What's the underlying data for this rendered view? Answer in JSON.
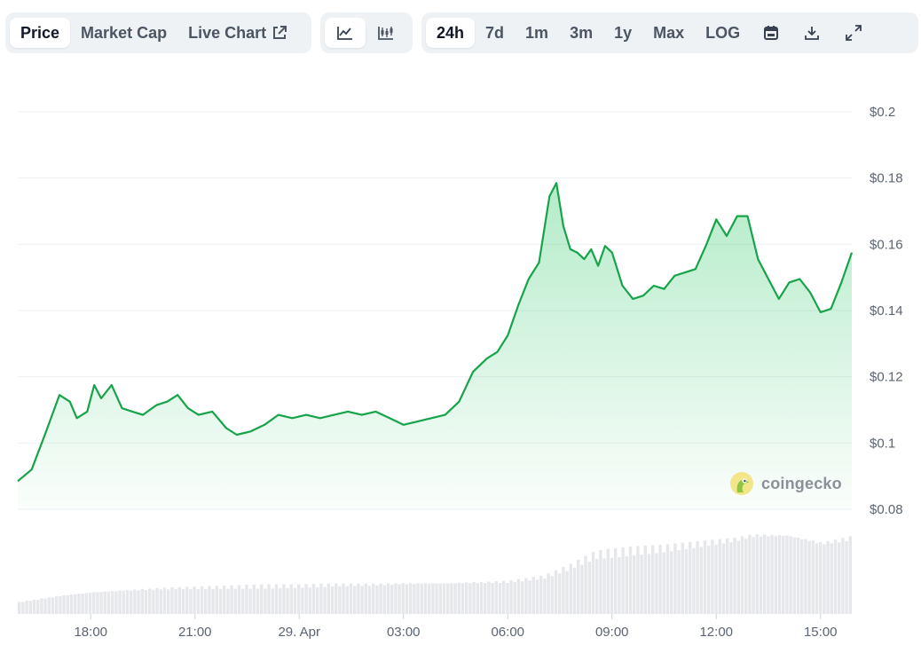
{
  "toolbar": {
    "type_tabs": [
      {
        "label": "Price",
        "active": true
      },
      {
        "label": "Market Cap",
        "active": false
      },
      {
        "label": "Live Chart",
        "active": false
      }
    ],
    "style_icons": [
      "line-chart-icon",
      "candlestick-chart-icon"
    ],
    "ranges": [
      {
        "label": "24h",
        "active": true
      },
      {
        "label": "7d",
        "active": false
      },
      {
        "label": "1m",
        "active": false
      },
      {
        "label": "3m",
        "active": false
      },
      {
        "label": "1y",
        "active": false
      },
      {
        "label": "Max",
        "active": false
      },
      {
        "label": "LOG",
        "active": false
      }
    ],
    "action_icons": [
      "calendar-icon",
      "download-icon",
      "fullscreen-icon"
    ]
  },
  "watermark": {
    "text": "coingecko"
  },
  "colors": {
    "line": "#16a34a",
    "area": "#22c55e",
    "volume": "#e5e7eb",
    "grid": "#edf0f3"
  },
  "chart_data": {
    "type": "line",
    "x_tick_labels": [
      "18:00",
      "21:00",
      "29. Apr",
      "03:00",
      "06:00",
      "09:00",
      "12:00",
      "15:00"
    ],
    "y_tick_labels": [
      "$0.2",
      "$0.18",
      "$0.16",
      "$0.14",
      "$0.12",
      "$0.1",
      "$0.08"
    ],
    "ylim": [
      0.08,
      0.2
    ],
    "x_range_hours": [
      15.9,
      39.9
    ],
    "grid": true,
    "series": [
      {
        "x": [
          15.9,
          16.3,
          16.7,
          17.1,
          17.4,
          17.6,
          17.9,
          18.1,
          18.3,
          18.6,
          18.9,
          19.2,
          19.5,
          19.9,
          20.2,
          20.5,
          20.8,
          21.1,
          21.5,
          21.9,
          22.2,
          22.6,
          23.0,
          23.4,
          23.8,
          24.2,
          24.6,
          25.0,
          25.4,
          25.8,
          26.2,
          26.6,
          27.0,
          27.4,
          27.8,
          28.2,
          28.6,
          29.0,
          29.4,
          29.7,
          30.0,
          30.3,
          30.6,
          30.9,
          31.2,
          31.4,
          31.6,
          31.8,
          32.0,
          32.2,
          32.4,
          32.6,
          32.8,
          33.0,
          33.3,
          33.6,
          33.9,
          34.2,
          34.5,
          34.8,
          35.1,
          35.4,
          35.7,
          36.0,
          36.3,
          36.6,
          36.9,
          37.2,
          37.5,
          37.8,
          38.1,
          38.4,
          38.7,
          39.0,
          39.3,
          39.6,
          39.9
        ],
        "values": [
          0.0885,
          0.092,
          0.103,
          0.1145,
          0.1125,
          0.1075,
          0.1095,
          0.1175,
          0.1135,
          0.1175,
          0.1105,
          0.1095,
          0.1085,
          0.1115,
          0.1125,
          0.1145,
          0.1105,
          0.1085,
          0.1095,
          0.1045,
          0.1025,
          0.1035,
          0.1055,
          0.1085,
          0.1075,
          0.1085,
          0.1075,
          0.1085,
          0.1095,
          0.1085,
          0.1095,
          0.1075,
          0.1055,
          0.1065,
          0.1075,
          0.1085,
          0.1125,
          0.1215,
          0.1255,
          0.1275,
          0.1325,
          0.1415,
          0.1495,
          0.1545,
          0.1745,
          0.1785,
          0.1655,
          0.1585,
          0.1575,
          0.1555,
          0.1585,
          0.1535,
          0.1595,
          0.1575,
          0.1475,
          0.1435,
          0.1445,
          0.1475,
          0.1465,
          0.1505,
          0.1515,
          0.1525,
          0.1595,
          0.1675,
          0.1625,
          0.1685,
          0.1685,
          0.1555,
          0.1495,
          0.1435,
          0.1485,
          0.1495,
          0.1455,
          0.1395,
          0.1405,
          0.1485,
          0.1575
        ]
      }
    ],
    "volume": {
      "x": [
        15.9,
        17.0,
        18.0,
        19.0,
        20.0,
        21.0,
        22.0,
        23.0,
        24.0,
        25.0,
        26.0,
        27.0,
        28.0,
        29.0,
        30.0,
        31.0,
        31.7,
        32.5,
        33.5,
        34.5,
        35.5,
        36.5,
        37.0,
        37.5,
        38.0,
        38.5,
        39.0,
        39.5,
        39.9
      ],
      "values": [
        0.12,
        0.18,
        0.22,
        0.24,
        0.26,
        0.27,
        0.28,
        0.29,
        0.29,
        0.3,
        0.3,
        0.31,
        0.31,
        0.32,
        0.33,
        0.38,
        0.48,
        0.62,
        0.66,
        0.68,
        0.72,
        0.76,
        0.8,
        0.8,
        0.8,
        0.76,
        0.72,
        0.75,
        0.78
      ]
    }
  }
}
